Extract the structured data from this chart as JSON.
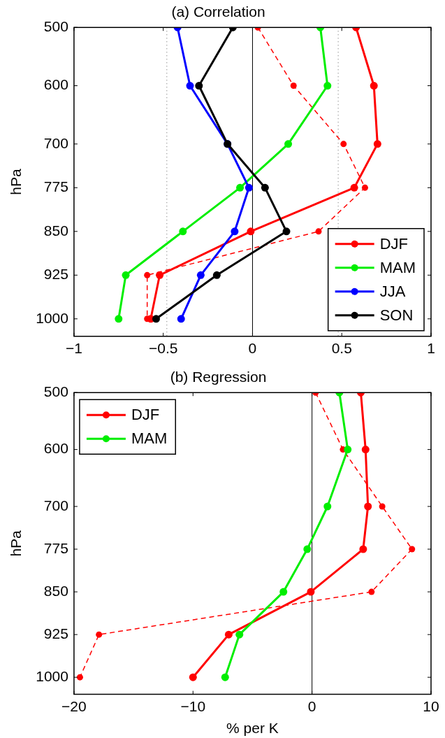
{
  "chart_data": [
    {
      "type": "line",
      "title": "(a) Correlation",
      "ylabel": "hPa",
      "marker": "circle",
      "grid": false,
      "legend": "bottom right",
      "xlim": [
        -1,
        1
      ],
      "xticks": [
        -1,
        -0.5,
        0,
        0.5,
        1
      ],
      "ylim": [
        1030,
        500
      ],
      "yticks": [
        500,
        600,
        700,
        775,
        850,
        925,
        1000
      ],
      "ref_lines": [
        {
          "axis": "x",
          "value": 0,
          "color": "#000000",
          "line_style": "solid"
        },
        {
          "axis": "x",
          "value": -0.48,
          "color": "#666666",
          "line_style": "dotted"
        },
        {
          "axis": "x",
          "value": 0.48,
          "color": "#666666",
          "line_style": "dotted"
        }
      ],
      "series": [
        {
          "name": "DJF",
          "color": "#ff0000",
          "line_style": "solid",
          "x": [
            0.58,
            0.68,
            0.7,
            0.57,
            -0.01,
            -0.52,
            -0.57
          ],
          "values": [
            500,
            600,
            700,
            775,
            850,
            925,
            1000
          ]
        },
        {
          "color": "#ff0000",
          "line_style": "dashed",
          "x": [
            0.03,
            0.23,
            0.51,
            0.63,
            0.37,
            -0.59,
            -0.59
          ],
          "values": [
            500,
            600,
            700,
            775,
            850,
            925,
            1000
          ]
        },
        {
          "name": "MAM",
          "color": "#00ee00",
          "line_style": "solid",
          "x": [
            0.38,
            0.42,
            0.2,
            -0.07,
            -0.39,
            -0.71,
            -0.75
          ],
          "values": [
            500,
            600,
            700,
            775,
            850,
            925,
            1000
          ]
        },
        {
          "name": "JJA",
          "color": "#0000ff",
          "line_style": "solid",
          "x": [
            -0.42,
            -0.35,
            -0.14,
            -0.02,
            -0.1,
            -0.29,
            -0.4
          ],
          "values": [
            500,
            600,
            700,
            775,
            850,
            925,
            1000
          ]
        },
        {
          "name": "SON",
          "color": "#000000",
          "line_style": "solid",
          "x": [
            -0.11,
            -0.3,
            -0.14,
            0.07,
            0.19,
            -0.2,
            -0.54
          ],
          "values": [
            500,
            600,
            700,
            775,
            850,
            925,
            1000
          ]
        }
      ]
    },
    {
      "type": "line",
      "title": "(b) Regression",
      "ylabel": "hPa",
      "xlabel": "% per K",
      "marker": "circle",
      "grid": false,
      "legend": "top left",
      "xlim": [
        -20,
        10
      ],
      "xticks": [
        -20,
        -10,
        0,
        10
      ],
      "ylim": [
        1030,
        500
      ],
      "yticks": [
        500,
        600,
        700,
        775,
        850,
        925,
        1000
      ],
      "ref_lines": [
        {
          "axis": "x",
          "value": 0,
          "color": "#000000",
          "line_style": "solid"
        }
      ],
      "series": [
        {
          "name": "DJF",
          "color": "#ff0000",
          "line_style": "solid",
          "x": [
            4.1,
            4.5,
            4.7,
            4.3,
            -0.1,
            -7.0,
            -10.0
          ],
          "values": [
            500,
            600,
            700,
            775,
            850,
            925,
            1000
          ]
        },
        {
          "color": "#ff0000",
          "line_style": "dashed",
          "x": [
            0.3,
            2.6,
            5.9,
            8.4,
            5.0,
            -17.9,
            -19.5
          ],
          "values": [
            500,
            600,
            700,
            775,
            850,
            925,
            1000
          ]
        },
        {
          "name": "MAM",
          "color": "#00ee00",
          "line_style": "solid",
          "x": [
            2.3,
            3.0,
            1.3,
            -0.4,
            -2.4,
            -6.1,
            -7.3
          ],
          "values": [
            500,
            600,
            700,
            775,
            850,
            925,
            1000
          ]
        }
      ]
    }
  ]
}
